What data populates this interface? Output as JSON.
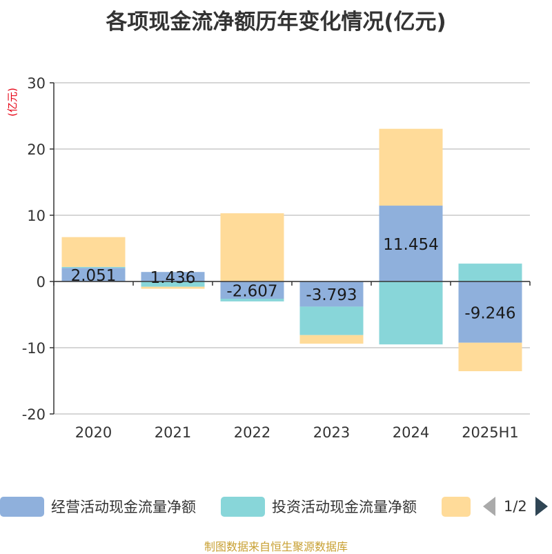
{
  "chart_data": {
    "type": "bar",
    "title": "各项现金流净额历年变化情况(亿元)",
    "ylabel": "(亿元)",
    "xlabel": "",
    "categories": [
      "2020",
      "2021",
      "2022",
      "2023",
      "2024",
      "2025H1"
    ],
    "ylim": [
      -20,
      30
    ],
    "yticks": [
      30,
      20,
      10,
      0,
      -10,
      -20
    ],
    "series": [
      {
        "name": "经营活动现金流量净额",
        "color": "#8fb0dc",
        "values": [
          2.051,
          1.436,
          -2.607,
          -3.793,
          11.454,
          -9.246
        ],
        "labels": [
          "2.051",
          "1.436",
          "-2.607",
          "-3.793",
          "11.454",
          "-9.246"
        ]
      },
      {
        "name": "投资活动现金流量净额",
        "color": "#88d6d9",
        "values": [
          0.15,
          -0.8,
          -0.4,
          -4.3,
          -9.5,
          2.7
        ]
      },
      {
        "name": "",
        "color": "#ffdb99",
        "values": [
          4.5,
          -0.3,
          10.3,
          -1.3,
          11.6,
          -4.3
        ]
      }
    ],
    "grid": true,
    "legend": "bottom"
  },
  "legend": {
    "page": "1/2"
  },
  "source": "制图数据来自恒生聚源数据库"
}
